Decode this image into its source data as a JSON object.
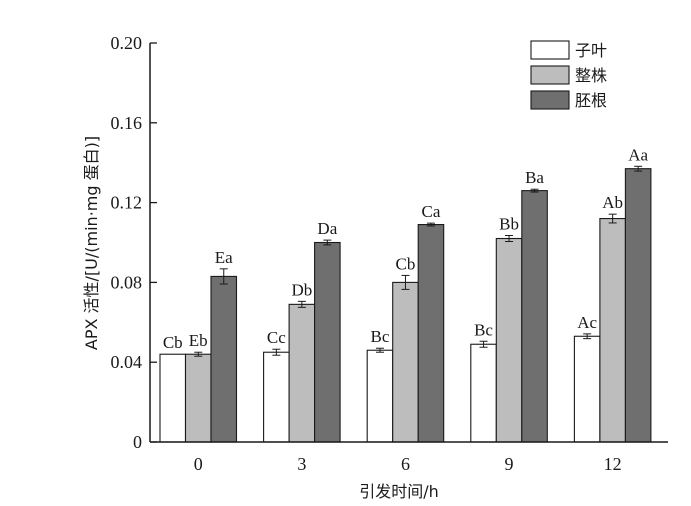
{
  "chart_data": {
    "type": "bar",
    "title": "",
    "xlabel": "引发时间/h",
    "ylabel": "APX 活性/[U/(min·mg 蛋白)]",
    "categories": [
      "0",
      "3",
      "6",
      "9",
      "12"
    ],
    "ylim": [
      0,
      0.2
    ],
    "yticks": [
      "0",
      "0.04",
      "0.08",
      "0.12",
      "0.16",
      "0.20"
    ],
    "ytick_values": [
      0,
      0.04,
      0.08,
      0.12,
      0.16,
      0.2
    ],
    "legend_position": "top-right",
    "series": [
      {
        "name": "子叶",
        "color": "#ffffff",
        "values": [
          0.044,
          0.045,
          0.046,
          0.049,
          0.053
        ],
        "errors": [
          0.0,
          0.0015,
          0.001,
          0.0015,
          0.0012
        ],
        "labels": [
          "Cb",
          "Cc",
          "Bc",
          "Bc",
          "Ac"
        ]
      },
      {
        "name": "整株",
        "color": "#bdbdbd",
        "values": [
          0.044,
          0.069,
          0.08,
          0.102,
          0.112
        ],
        "errors": [
          0.001,
          0.0015,
          0.0035,
          0.0015,
          0.0022
        ],
        "labels": [
          "Eb",
          "Db",
          "Cb",
          "Bb",
          "Ab"
        ]
      },
      {
        "name": "胚根",
        "color": "#6f6f6f",
        "values": [
          0.083,
          0.1,
          0.109,
          0.126,
          0.137
        ],
        "errors": [
          0.0038,
          0.0012,
          0.0007,
          0.0007,
          0.0012
        ],
        "labels": [
          "Ea",
          "Da",
          "Ca",
          "Ba",
          "Aa"
        ]
      }
    ]
  }
}
